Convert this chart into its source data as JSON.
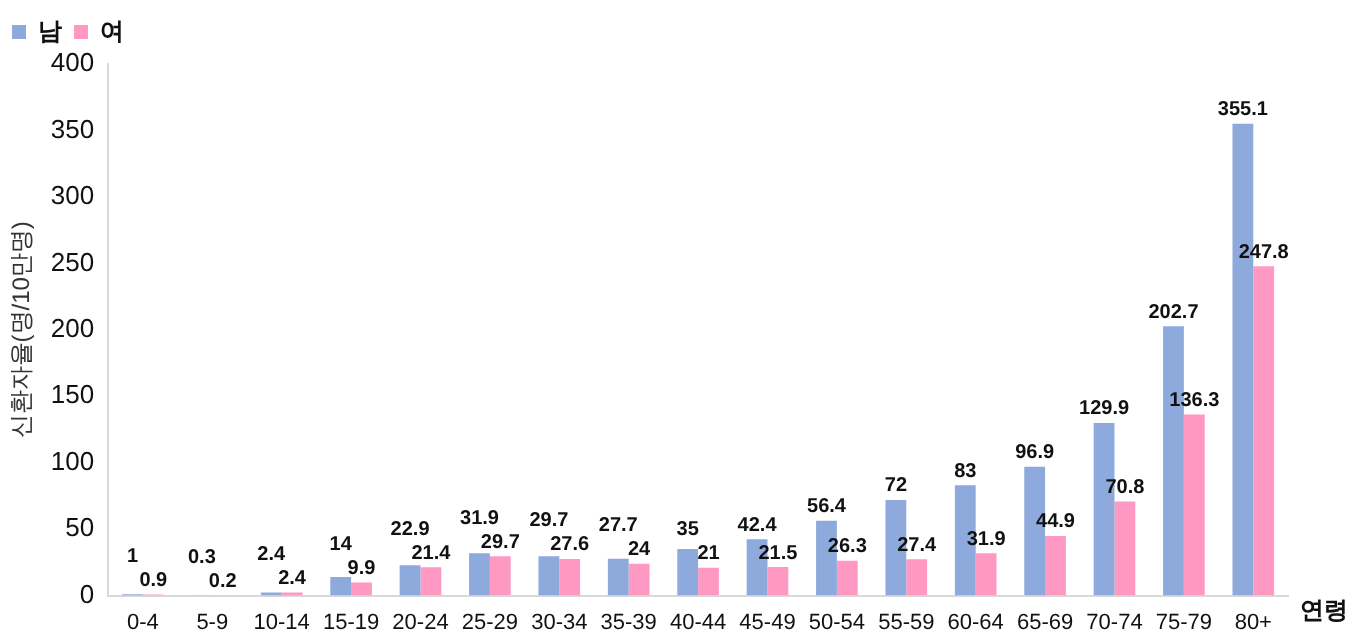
{
  "chart_data": {
    "type": "bar",
    "ylabel": "신환자율(명/10만명)",
    "xlabel": "연령",
    "categories": [
      "0-4",
      "5-9",
      "10-14",
      "15-19",
      "20-24",
      "25-29",
      "30-34",
      "35-39",
      "40-44",
      "45-49",
      "50-54",
      "55-59",
      "60-64",
      "65-69",
      "70-74",
      "75-79",
      "80+"
    ],
    "series": [
      {
        "name": "남",
        "color": "#8eaadc",
        "values": [
          1,
          0.3,
          2.4,
          14,
          22.9,
          31.9,
          29.7,
          27.7,
          35,
          42.4,
          56.4,
          72,
          83,
          96.9,
          129.9,
          202.7,
          355.1
        ]
      },
      {
        "name": "여",
        "color": "#ff99c4",
        "values": [
          0.9,
          0.2,
          2.4,
          9.9,
          21.4,
          29.7,
          27.6,
          24,
          21,
          21.5,
          26.3,
          27.4,
          31.9,
          44.9,
          70.8,
          136.3,
          247.8
        ]
      }
    ],
    "ylim": [
      0,
      400
    ],
    "yticks": [
      0,
      50,
      100,
      150,
      200,
      250,
      300,
      350,
      400
    ],
    "grid": false,
    "legend": "top left",
    "data_labels": true
  }
}
